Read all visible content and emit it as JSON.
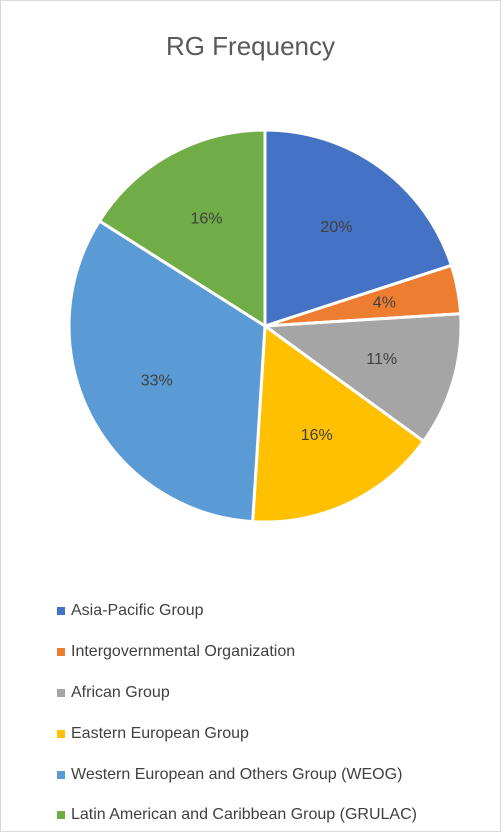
{
  "chart_data": {
    "type": "pie",
    "title": "RG Frequency",
    "start_angle_deg": 0,
    "direction": "clockwise",
    "legend_position": "bottom",
    "slices": [
      {
        "name": "Asia-Pacific Group",
        "value": 20,
        "label": "20%",
        "color": "#4472C4"
      },
      {
        "name": "Intergovernmental Organization",
        "value": 4,
        "label": "4%",
        "color": "#ED7D31"
      },
      {
        "name": "African Group",
        "value": 11,
        "label": "11%",
        "color": "#A5A5A5"
      },
      {
        "name": "Eastern European Group",
        "value": 16,
        "label": "16%",
        "color": "#FFC000"
      },
      {
        "name": "Western European and Others Group (WEOG)",
        "value": 33,
        "label": "33%",
        "color": "#5B9BD5"
      },
      {
        "name": "Latin American and Caribbean Group (GRULAC)",
        "value": 16,
        "label": "16%",
        "color": "#70AD47"
      }
    ]
  }
}
